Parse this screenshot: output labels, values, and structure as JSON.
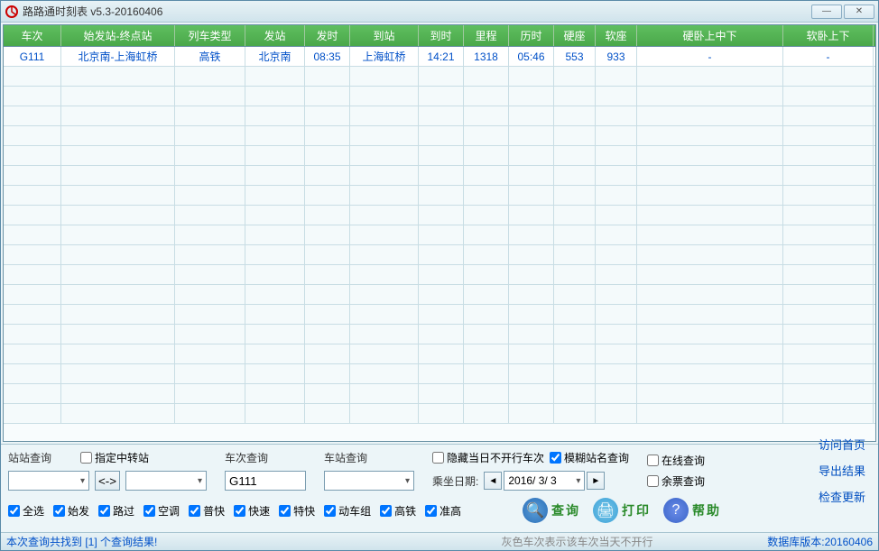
{
  "title": "路路通时刻表 v5.3-20160406",
  "columns": [
    {
      "label": "车次",
      "cls": "col0"
    },
    {
      "label": "始发站-终点站",
      "cls": "col1"
    },
    {
      "label": "列车类型",
      "cls": "col2"
    },
    {
      "label": "发站",
      "cls": "col3"
    },
    {
      "label": "发时",
      "cls": "col4"
    },
    {
      "label": "到站",
      "cls": "col5"
    },
    {
      "label": "到时",
      "cls": "col6"
    },
    {
      "label": "里程",
      "cls": "col7"
    },
    {
      "label": "历时",
      "cls": "col8"
    },
    {
      "label": "硬座",
      "cls": "col9"
    },
    {
      "label": "软座",
      "cls": "col10"
    },
    {
      "label": "硬卧上中下",
      "cls": "col11"
    },
    {
      "label": "软卧上下",
      "cls": "col12"
    }
  ],
  "rows": [
    [
      "G111",
      "北京南-上海虹桥",
      "高铁",
      "北京南",
      "08:35",
      "上海虹桥",
      "14:21",
      "1318",
      "05:46",
      "553",
      "933",
      "-",
      "-"
    ]
  ],
  "empty_rows": 18,
  "labels": {
    "station_query": "站站查询",
    "transfer": "指定中转站",
    "train_query": "车次查询",
    "station_name_query": "车站查询",
    "hide_no_run": "隐藏当日不开行车次",
    "fuzzy": "模糊站名查询",
    "online": "在线查询",
    "remaining": "余票查询",
    "ride_date": "乘坐日期:",
    "date_value": "2016/ 3/ 3",
    "swap": "<->",
    "home": "访问首页",
    "export": "导出结果",
    "update": "检查更新",
    "search": "查询",
    "print": "打印",
    "help": "帮助"
  },
  "train_input": "G111",
  "checks": [
    "全选",
    "始发",
    "路过",
    "空调",
    "普快",
    "快速",
    "特快",
    "动车组",
    "高铁",
    "准高"
  ],
  "status": {
    "left_a": "本次查询共找到 ",
    "left_b": "[1]",
    "left_c": " 个查询结果!",
    "mid": "灰色车次表示该车次当天不开行",
    "right": "数据库版本:20160406"
  },
  "colors": {
    "header_bg": "#4aa84a",
    "link": "#0050c8",
    "search_icon": "#2a6eb8",
    "print_icon": "#3aa0d8",
    "help_icon": "#3a64c8"
  }
}
